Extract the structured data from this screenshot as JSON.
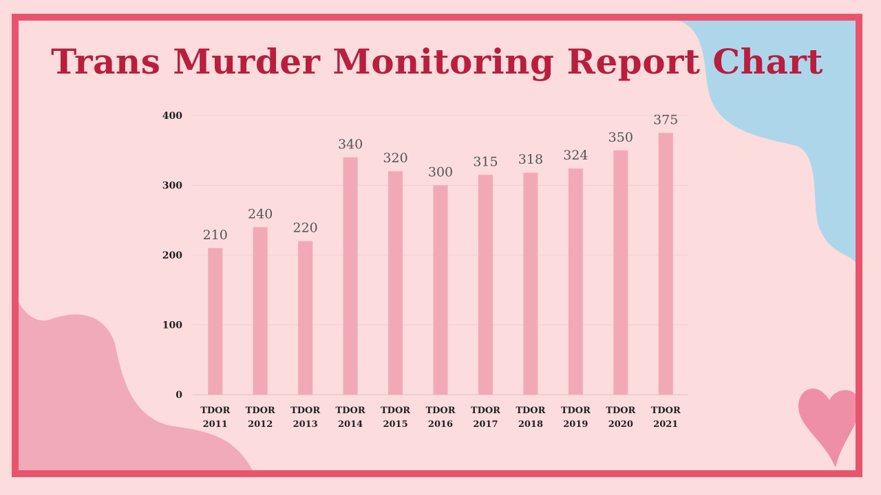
{
  "page": {
    "title": "Trans Murder Monitoring Report Chart"
  },
  "colors": {
    "border": "#e8546e",
    "background": "#fcdcdc",
    "title": "#b81e3e",
    "bar": "#f2a9b6",
    "blue_blob": "#aed6ea",
    "pink_blob": "#f1aab7",
    "heart": "#ef8fa6"
  },
  "chart_data": {
    "type": "bar",
    "title": "",
    "xlabel": "",
    "ylabel": "",
    "categories": [
      [
        "TDOR",
        "2011"
      ],
      [
        "TDOR",
        "2012"
      ],
      [
        "TDOR",
        "2013"
      ],
      [
        "TDOR",
        "2014"
      ],
      [
        "TDOR",
        "2015"
      ],
      [
        "TDOR",
        "2016"
      ],
      [
        "TDOR",
        "2017"
      ],
      [
        "TDOR",
        "2018"
      ],
      [
        "TDOR",
        "2019"
      ],
      [
        "TDOR",
        "2020"
      ],
      [
        "TDOR",
        "2021"
      ]
    ],
    "values": [
      210,
      240,
      220,
      340,
      320,
      300,
      315,
      318,
      324,
      350,
      375
    ],
    "ylim": [
      0,
      400
    ],
    "yticks": [
      0,
      100,
      200,
      300,
      400
    ],
    "grid": true,
    "data_labels": true,
    "legend": "none"
  }
}
